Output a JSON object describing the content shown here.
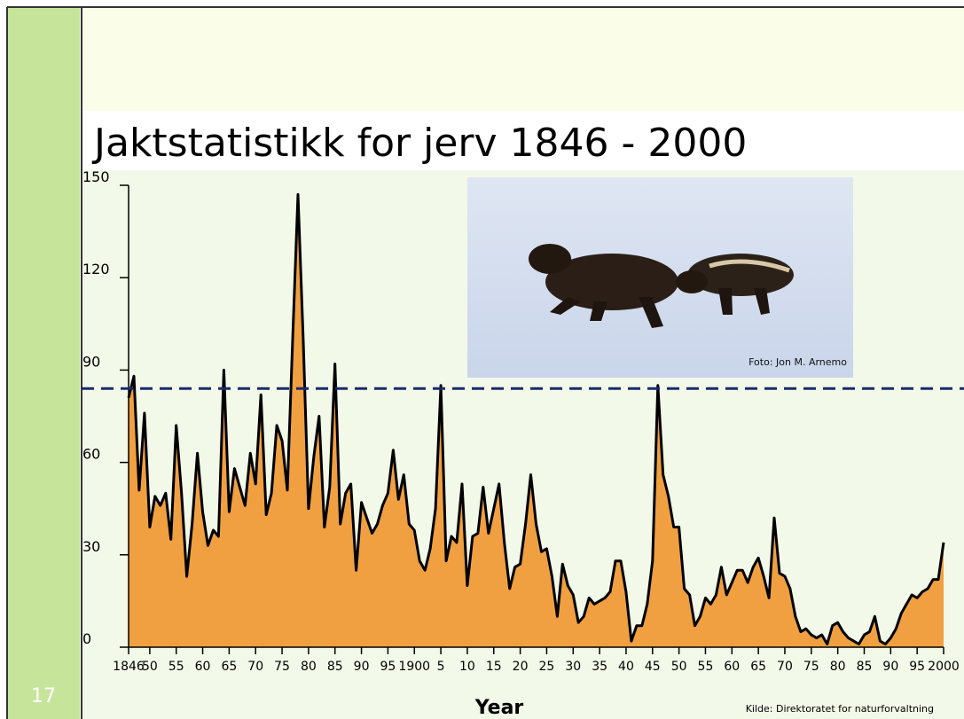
{
  "slide_number": "17",
  "photo_credit": "Foto: Jon M. Arnemo",
  "source": "Kilde: Direktoratet for naturforvaltning",
  "chart_data": {
    "type": "area",
    "title": "Jaktstatistikk for jerv 1846 - 2000",
    "x_label": "Year",
    "color": "#f0a040",
    "line_color": "#000000",
    "reference_line": 84,
    "reference_color": "#1a2a6c",
    "xlim": [
      1846,
      2000
    ],
    "ylim": [
      0,
      150
    ],
    "yticks": [
      0,
      30,
      60,
      90,
      120,
      150
    ],
    "xticks": [
      1846,
      {
        "value": 1850,
        "label": "50"
      },
      {
        "value": 1855,
        "label": "55"
      },
      {
        "value": 1860,
        "label": "60"
      },
      {
        "value": 1865,
        "label": "65"
      },
      {
        "value": 1870,
        "label": "70"
      },
      {
        "value": 1875,
        "label": "75"
      },
      {
        "value": 1880,
        "label": "80"
      },
      {
        "value": 1885,
        "label": "85"
      },
      {
        "value": 1890,
        "label": "90"
      },
      {
        "value": 1895,
        "label": "95"
      },
      1900,
      {
        "value": 1905,
        "label": "5"
      },
      {
        "value": 1910,
        "label": "10"
      },
      {
        "value": 1915,
        "label": "15"
      },
      {
        "value": 1920,
        "label": "20"
      },
      {
        "value": 1925,
        "label": "25"
      },
      {
        "value": 1930,
        "label": "30"
      },
      {
        "value": 1935,
        "label": "35"
      },
      {
        "value": 1940,
        "label": "40"
      },
      {
        "value": 1945,
        "label": "45"
      },
      {
        "value": 1950,
        "label": "50"
      },
      {
        "value": 1955,
        "label": "55"
      },
      {
        "value": 1960,
        "label": "60"
      },
      {
        "value": 1965,
        "label": "65"
      },
      {
        "value": 1970,
        "label": "70"
      },
      {
        "value": 1975,
        "label": "75"
      },
      {
        "value": 1980,
        "label": "80"
      },
      {
        "value": 1985,
        "label": "85"
      },
      {
        "value": 1990,
        "label": "90"
      },
      {
        "value": 1995,
        "label": "95"
      },
      2000
    ],
    "x": [
      1846,
      1847,
      1848,
      1849,
      1850,
      1851,
      1852,
      1853,
      1854,
      1855,
      1856,
      1857,
      1858,
      1859,
      1860,
      1861,
      1862,
      1863,
      1864,
      1865,
      1866,
      1867,
      1868,
      1869,
      1870,
      1871,
      1872,
      1873,
      1874,
      1875,
      1876,
      1877,
      1878,
      1879,
      1880,
      1881,
      1882,
      1883,
      1884,
      1885,
      1886,
      1887,
      1888,
      1889,
      1890,
      1891,
      1892,
      1893,
      1894,
      1895,
      1896,
      1897,
      1898,
      1899,
      1900,
      1901,
      1902,
      1903,
      1904,
      1905,
      1906,
      1907,
      1908,
      1909,
      1910,
      1911,
      1912,
      1913,
      1914,
      1915,
      1916,
      1917,
      1918,
      1919,
      1920,
      1921,
      1922,
      1923,
      1924,
      1925,
      1926,
      1927,
      1928,
      1929,
      1930,
      1931,
      1932,
      1933,
      1934,
      1935,
      1936,
      1937,
      1938,
      1939,
      1940,
      1941,
      1942,
      1943,
      1944,
      1945,
      1946,
      1947,
      1948,
      1949,
      1950,
      1951,
      1952,
      1953,
      1954,
      1955,
      1956,
      1957,
      1958,
      1959,
      1960,
      1961,
      1962,
      1963,
      1964,
      1965,
      1966,
      1967,
      1968,
      1969,
      1970,
      1971,
      1972,
      1973,
      1974,
      1975,
      1976,
      1977,
      1978,
      1979,
      1980,
      1981,
      1982,
      1983,
      1984,
      1985,
      1986,
      1987,
      1988,
      1989,
      1990,
      1991,
      1992,
      1993,
      1994,
      1995,
      1996,
      1997,
      1998,
      1999,
      2000
    ],
    "values": [
      81,
      88,
      51,
      76,
      39,
      49,
      46,
      50,
      35,
      72,
      50,
      23,
      40,
      63,
      44,
      33,
      38,
      36,
      90,
      44,
      58,
      52,
      46,
      63,
      53,
      82,
      43,
      50,
      72,
      67,
      51,
      100,
      147,
      100,
      45,
      62,
      75,
      39,
      52,
      92,
      40,
      50,
      53,
      25,
      47,
      42,
      37,
      40,
      46,
      50,
      64,
      48,
      56,
      40,
      38,
      28,
      25,
      32,
      45,
      85,
      28,
      36,
      34,
      53,
      20,
      36,
      37,
      52,
      37,
      45,
      53,
      34,
      19,
      26,
      27,
      40,
      56,
      40,
      31,
      32,
      23,
      10,
      27,
      20,
      17,
      8,
      10,
      16,
      14,
      15,
      16,
      18,
      28,
      28,
      18,
      2,
      7,
      7,
      14,
      28,
      85,
      56,
      49,
      39,
      39,
      19,
      17,
      7,
      10,
      16,
      14,
      17,
      26,
      17,
      21,
      25,
      25,
      21,
      26,
      29,
      23,
      16,
      42,
      24,
      23,
      19,
      10,
      5,
      6,
      4,
      3,
      4,
      1,
      7,
      8,
      5,
      3,
      2,
      1,
      4,
      5,
      10,
      2,
      1,
      3,
      6,
      11,
      14,
      17,
      16,
      18,
      19,
      22,
      22,
      34
    ]
  }
}
